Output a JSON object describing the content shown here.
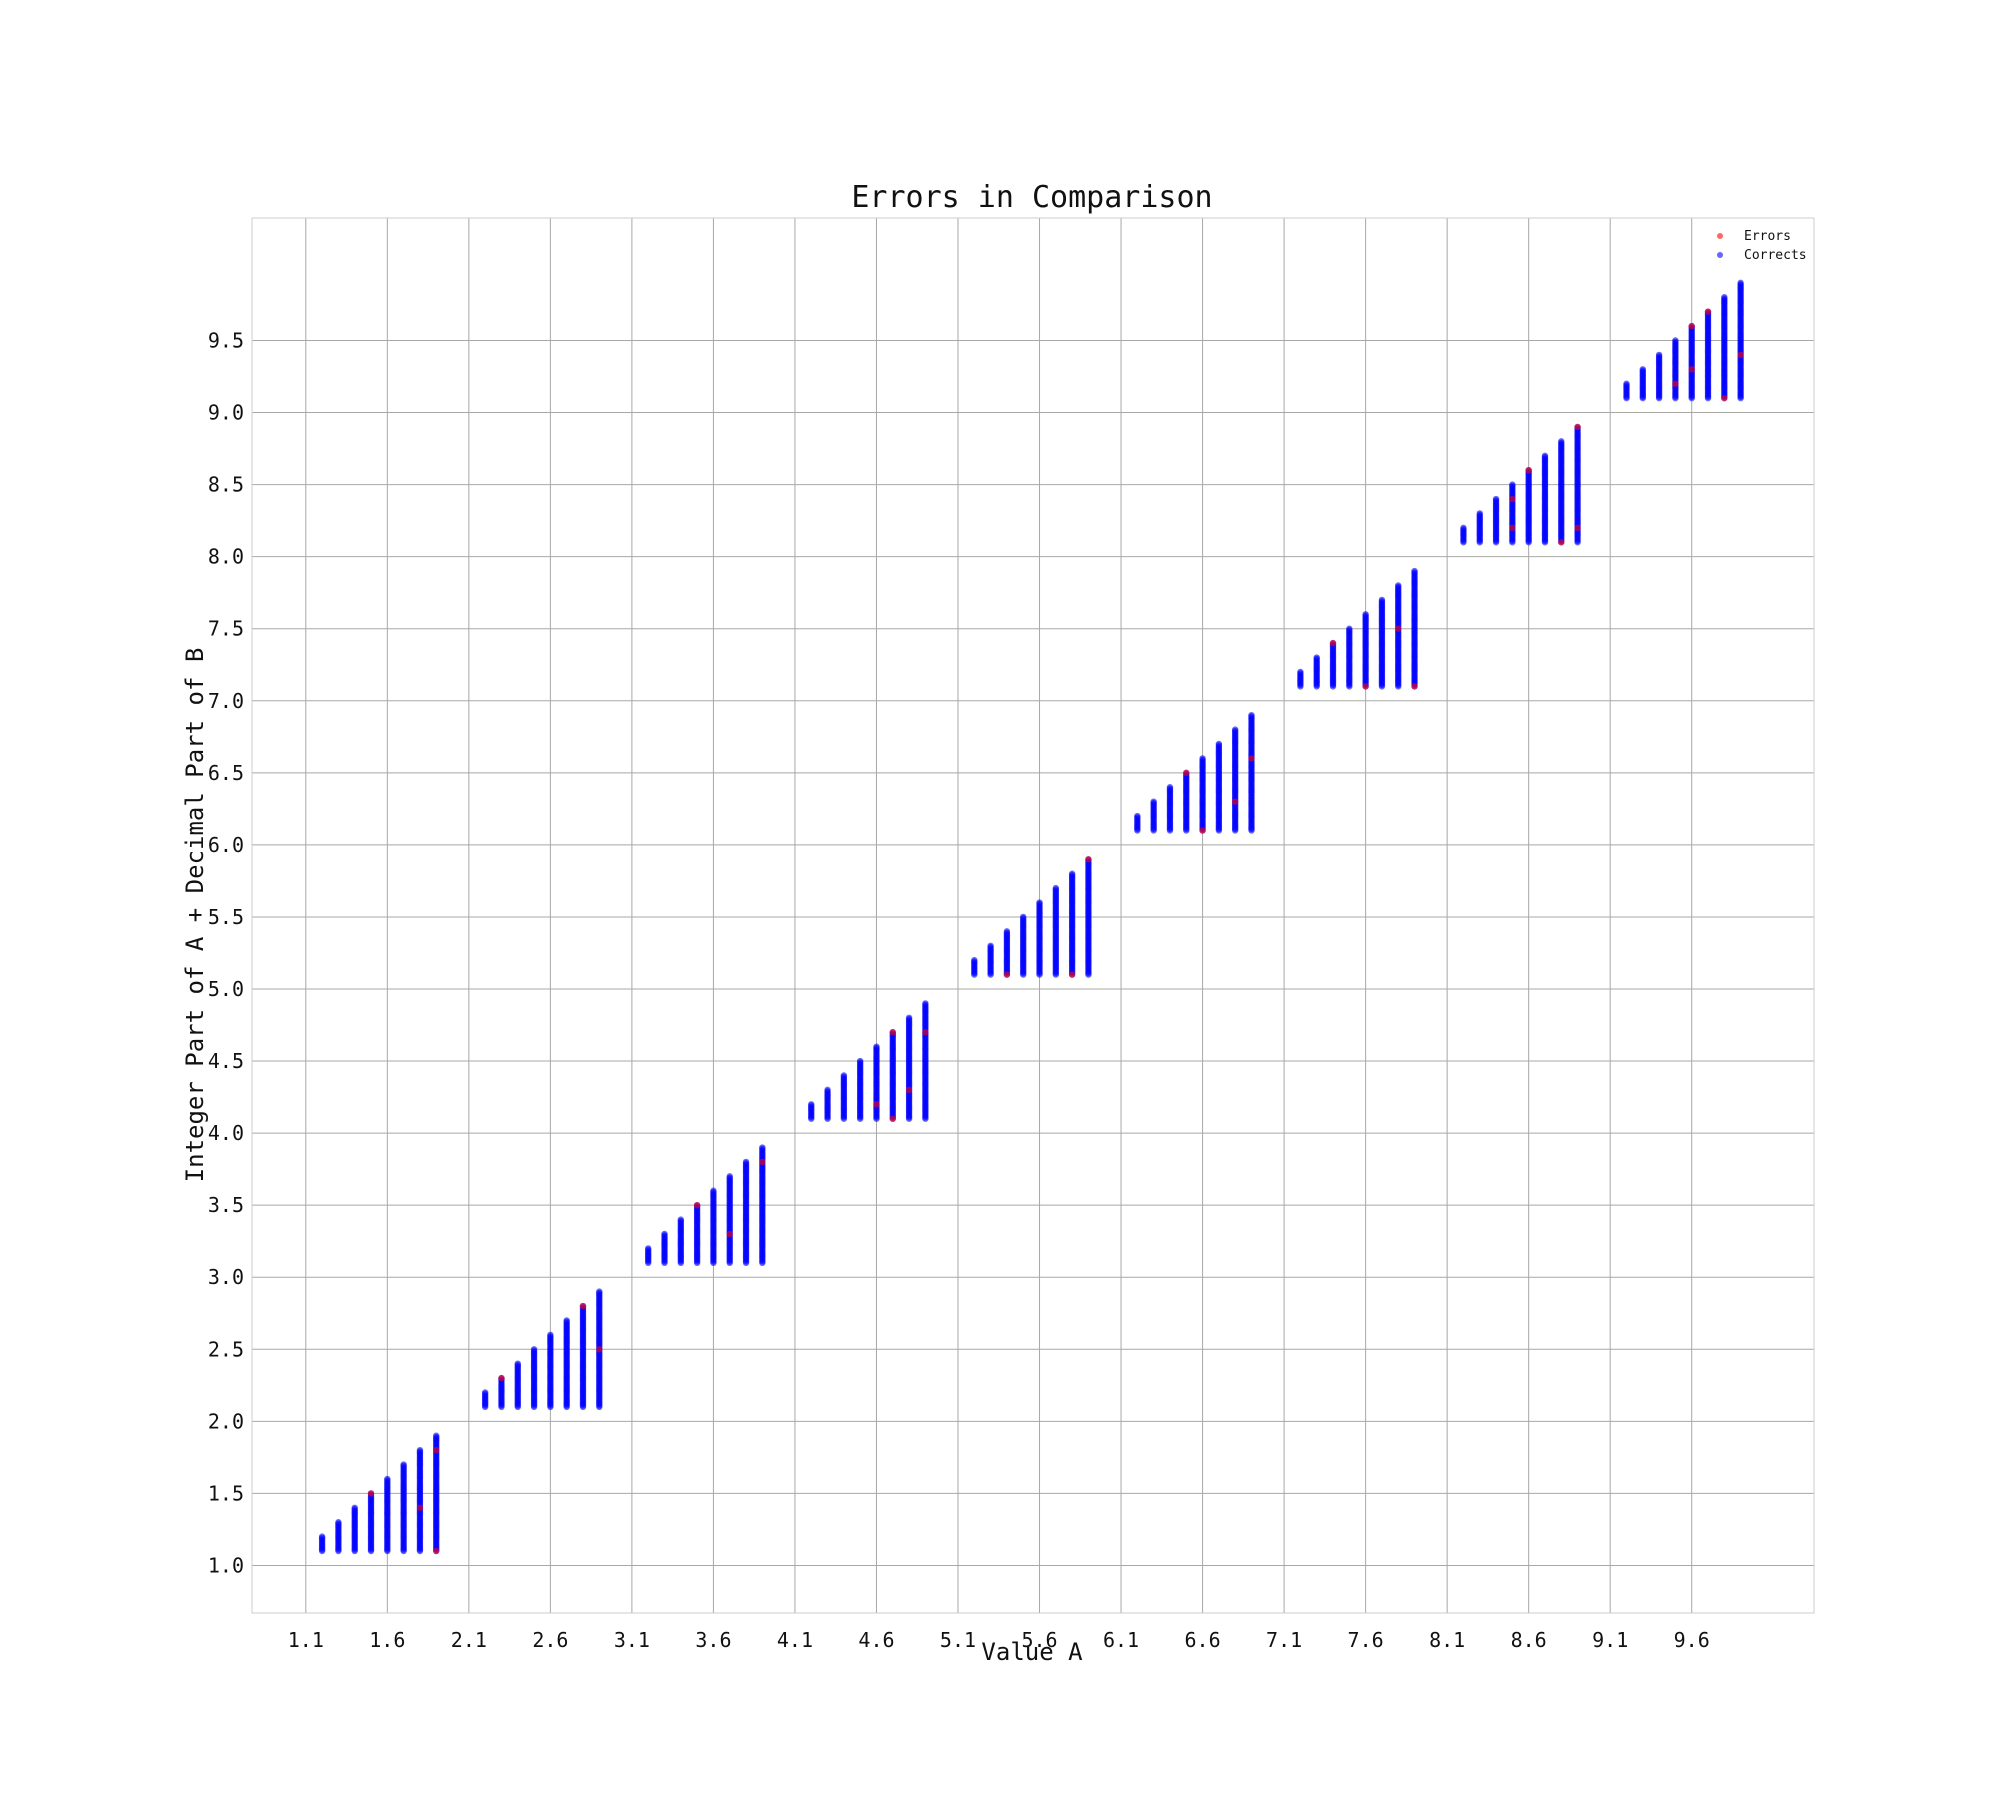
{
  "chart_data": {
    "type": "scatter",
    "title": "Errors in Comparison",
    "xlabel": "Value A",
    "ylabel": "Integer Part of A + Decimal Part of B",
    "xlim": [
      0.77,
      10.35
    ],
    "ylim": [
      0.67,
      10.35
    ],
    "x_ticks": [
      "1.1",
      "1.6",
      "2.1",
      "2.6",
      "3.1",
      "3.6",
      "4.1",
      "4.6",
      "5.1",
      "5.6",
      "6.1",
      "6.6",
      "7.1",
      "7.6",
      "8.1",
      "8.6",
      "9.1",
      "9.6"
    ],
    "y_ticks": [
      "1.0",
      "1.5",
      "2.0",
      "2.5",
      "3.0",
      "3.5",
      "4.0",
      "4.5",
      "5.0",
      "5.5",
      "6.0",
      "6.5",
      "7.0",
      "7.5",
      "8.0",
      "8.5",
      "9.0",
      "9.5"
    ],
    "grid": true,
    "legend_position": "top-right",
    "series": [
      {
        "name": "Errors",
        "color": "#ff0000",
        "points": [
          [
            1.5,
            1.5
          ],
          [
            1.9,
            1.1
          ],
          [
            1.8,
            1.4
          ],
          [
            1.9,
            1.8
          ],
          [
            2.8,
            2.8
          ],
          [
            2.9,
            2.5
          ],
          [
            2.3,
            2.3
          ],
          [
            3.5,
            3.5
          ],
          [
            3.7,
            3.3
          ],
          [
            3.9,
            3.8
          ],
          [
            4.6,
            4.2
          ],
          [
            4.7,
            4.1
          ],
          [
            4.8,
            4.3
          ],
          [
            4.9,
            4.7
          ],
          [
            4.7,
            4.7
          ],
          [
            5.4,
            5.1
          ],
          [
            5.8,
            5.1
          ],
          [
            5.9,
            5.9
          ],
          [
            6.5,
            6.5
          ],
          [
            6.6,
            6.1
          ],
          [
            6.8,
            6.3
          ],
          [
            6.9,
            6.6
          ],
          [
            7.4,
            7.4
          ],
          [
            7.6,
            7.1
          ],
          [
            7.9,
            7.1
          ],
          [
            7.8,
            7.5
          ],
          [
            8.5,
            8.2
          ],
          [
            8.5,
            8.4
          ],
          [
            8.6,
            8.6
          ],
          [
            8.8,
            8.1
          ],
          [
            8.9,
            8.2
          ],
          [
            8.9,
            8.9
          ],
          [
            9.6,
            9.6
          ],
          [
            9.7,
            9.7
          ],
          [
            9.6,
            9.3
          ],
          [
            9.5,
            9.2
          ],
          [
            9.8,
            9.1
          ],
          [
            9.9,
            9.4
          ]
        ]
      },
      {
        "name": "Corrects",
        "color": "#0000ff",
        "groups_x_start": [
          1.2,
          2.2,
          3.2,
          4.2,
          5.2,
          6.2,
          7.2,
          8.2,
          9.2
        ],
        "x_step": 0.1,
        "columns_per_group": 8,
        "y_range": "from integer part of A + 0.1 up to Value A, step 0.01"
      }
    ]
  }
}
